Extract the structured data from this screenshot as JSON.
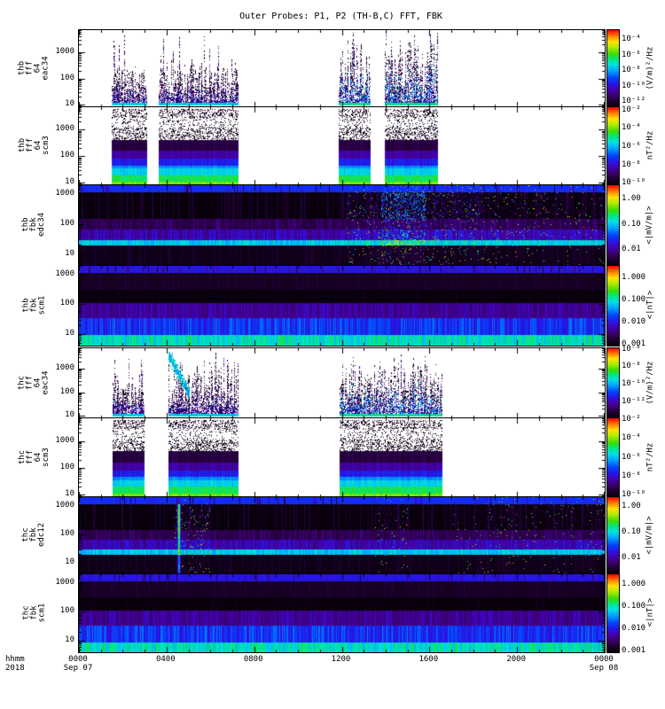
{
  "figure": {
    "title": "Outer Probes: P1, P2 (TH-B,C) FFT, FBK"
  },
  "chart_data": {
    "type": "heatmap",
    "title": "Outer Probes: P1, P2 (TH-B,C) FFT, FBK",
    "subtype": "multi-panel time-frequency spectrograms",
    "x_axis": {
      "format": "hhmm",
      "year": "2018",
      "range_hours": [
        0,
        24
      ],
      "corner": {
        "line1": "hhmm",
        "line2": "2018"
      },
      "ticks": [
        {
          "hour": 0,
          "line1": "0000",
          "line2": "Sep 07"
        },
        {
          "hour": 4,
          "line1": "0400",
          "line2": ""
        },
        {
          "hour": 8,
          "line1": "0800",
          "line2": ""
        },
        {
          "hour": 12,
          "line1": "1200",
          "line2": ""
        },
        {
          "hour": 16,
          "line1": "1600",
          "line2": ""
        },
        {
          "hour": 20,
          "line1": "2000",
          "line2": ""
        },
        {
          "hour": 24,
          "line1": "0000",
          "line2": "Sep 08"
        }
      ]
    },
    "panels": [
      {
        "label_lines": [
          "thb",
          "fff",
          "64",
          "eac34"
        ],
        "yticks": [
          "1000",
          "100",
          "10"
        ],
        "yscale": "log",
        "ylim_hz": [
          8,
          7000
        ],
        "colorbar": {
          "unit": "(V/m)²/Hz",
          "ticks": [
            "10⁻⁴",
            "10⁻⁶",
            "10⁻⁸",
            "10⁻¹⁰",
            "10⁻¹²"
          ]
        },
        "render": {
          "style": "fft_e",
          "bursts": [
            {
              "from": 1.5,
              "to": 3.12,
              "tall": 0.5
            },
            {
              "from": 3.65,
              "to": 7.3,
              "tall": 0.55
            },
            {
              "from": 11.85,
              "to": 13.3,
              "tall": 0.9,
              "bright": true
            },
            {
              "from": 13.95,
              "to": 16.4,
              "tall": 0.95,
              "bright": true
            }
          ]
        }
      },
      {
        "label_lines": [
          "thb",
          "fff",
          "64",
          "scm3"
        ],
        "yticks": [
          "1000",
          "100",
          "10"
        ],
        "yscale": "log",
        "ylim_hz": [
          8,
          7000
        ],
        "colorbar": {
          "unit": "nT²/Hz",
          "ticks": [
            "10⁻²",
            "10⁻⁴",
            "10⁻⁶",
            "10⁻⁸",
            "10⁻¹⁰"
          ]
        },
        "render": {
          "style": "fft_b",
          "bursts": [
            {
              "from": 1.5,
              "to": 3.12
            },
            {
              "from": 3.65,
              "to": 7.3
            },
            {
              "from": 11.85,
              "to": 13.3
            },
            {
              "from": 13.95,
              "to": 16.4
            }
          ]
        }
      },
      {
        "label_lines": [
          "thb",
          "fbk",
          "edc34"
        ],
        "yticks": [
          "1000",
          "100",
          "10"
        ],
        "yscale": "log",
        "ylim_hz": [
          4,
          2000
        ],
        "colorbar": {
          "unit": "<|mV/m|>",
          "ticks": [
            "1.00",
            "0.10",
            "0.01"
          ]
        },
        "render": {
          "style": "fbk_e",
          "hot_regions": [
            {
              "from": 12.2,
              "to": 13.8,
              "strength": 0.5
            },
            {
              "from": 13.8,
              "to": 15.8,
              "strength": 1.0
            },
            {
              "from": 15.8,
              "to": 18.5,
              "strength": 0.55
            },
            {
              "from": 18.5,
              "to": 24.0,
              "strength": 0.3
            }
          ]
        }
      },
      {
        "label_lines": [
          "thb",
          "fbk",
          "scm1"
        ],
        "yticks": [
          "1000",
          "100",
          "10"
        ],
        "yscale": "log",
        "ylim_hz": [
          4,
          2000
        ],
        "colorbar": {
          "unit": "<|nT|>",
          "ticks": [
            "1.000",
            "0.100",
            "0.010",
            "0.001"
          ]
        },
        "render": {
          "style": "fbk_b"
        }
      },
      {
        "label_lines": [
          "thc",
          "fff",
          "64",
          "eac34"
        ],
        "yticks": [
          "1000",
          "100",
          "10"
        ],
        "yscale": "log",
        "ylim_hz": [
          8,
          7000
        ],
        "colorbar": {
          "unit": "(V/m)²/Hz",
          "ticks": [
            "10⁻⁶",
            "10⁻⁸",
            "10⁻¹⁰",
            "10⁻¹²"
          ]
        },
        "render": {
          "style": "fft_e",
          "bursts": [
            {
              "from": 1.55,
              "to": 3.0,
              "tall": 0.5
            },
            {
              "from": 4.1,
              "to": 7.3,
              "tall": 0.85,
              "blob": true
            },
            {
              "from": 11.9,
              "to": 16.6,
              "tall": 0.8,
              "bright": true
            }
          ]
        }
      },
      {
        "label_lines": [
          "thc",
          "fff",
          "64",
          "scm3"
        ],
        "yticks": [
          "1000",
          "100",
          "10"
        ],
        "yscale": "log",
        "ylim_hz": [
          8,
          7000
        ],
        "colorbar": {
          "unit": "nT²/Hz",
          "ticks": [
            "10⁻²",
            "10⁻⁴",
            "10⁻⁶",
            "10⁻⁸",
            "10⁻¹⁰"
          ]
        },
        "render": {
          "style": "fft_b",
          "bursts": [
            {
              "from": 1.55,
              "to": 3.0
            },
            {
              "from": 4.1,
              "to": 7.3
            },
            {
              "from": 11.9,
              "to": 16.6
            }
          ]
        }
      },
      {
        "label_lines": [
          "thc",
          "fbk",
          "edc12"
        ],
        "yticks": [
          "1000",
          "100",
          "10"
        ],
        "yscale": "log",
        "ylim_hz": [
          4,
          2000
        ],
        "colorbar": {
          "unit": "<|mV/m|>",
          "ticks": [
            "1.00",
            "0.10",
            "0.01"
          ]
        },
        "render": {
          "style": "fbk_e",
          "flare": {
            "at": 4.55,
            "strength": 1.0
          },
          "hot_regions": [
            {
              "from": 4.3,
              "to": 6.0,
              "strength": 0.5
            },
            {
              "from": 13.5,
              "to": 15.0,
              "strength": 0.35
            },
            {
              "from": 17.0,
              "to": 24.0,
              "strength": 0.25
            }
          ]
        }
      },
      {
        "label_lines": [
          "thc",
          "fbk",
          "scm1"
        ],
        "yticks": [
          "1000",
          "100",
          "10"
        ],
        "yscale": "log",
        "ylim_hz": [
          4,
          2000
        ],
        "colorbar": {
          "unit": "<|nT|>",
          "ticks": [
            "1.000",
            "0.100",
            "0.010",
            "0.001"
          ]
        },
        "render": {
          "style": "fbk_b"
        }
      }
    ]
  }
}
